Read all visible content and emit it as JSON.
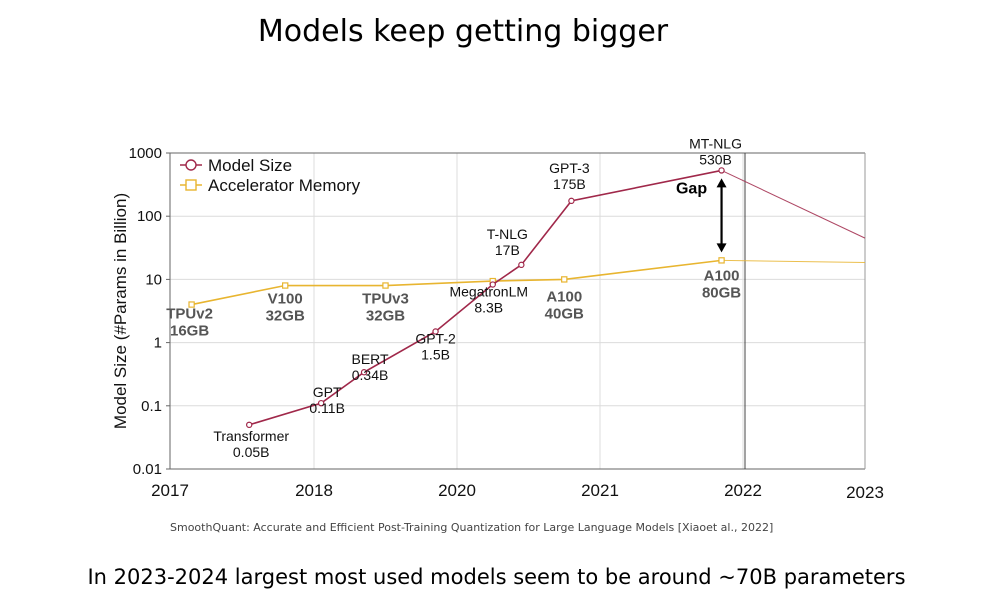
{
  "slide": {
    "title": "Models keep getting bigger",
    "citation": "SmoothQuant: Accurate and Efficient Post-Training Quantization for Large Language Models [Xiaoet al., 2022]",
    "footer": "In 2023-2024 largest most used models seem to be around ~70B parameters"
  },
  "chart_data": {
    "type": "line",
    "title": "",
    "xlabel": "",
    "ylabel": "Model Size (#Params in Billion)",
    "yscale": "log",
    "ylim": [
      0.01,
      1000
    ],
    "xlim": [
      2017,
      2023
    ],
    "x_ticks": [
      "2017",
      "2018",
      "2020",
      "2021",
      "2022",
      "2023"
    ],
    "y_ticks": [
      "0.01",
      "0.1",
      "1",
      "10",
      "100",
      "1000"
    ],
    "grid": true,
    "legend": {
      "placement": "top-left",
      "entries": [
        "Model Size",
        "Accelerator Memory"
      ]
    },
    "colors": {
      "model_size": "#a0284a",
      "accelerator_memory": "#e8b530"
    },
    "series": [
      {
        "name": "Model Size",
        "marker": "circle",
        "points": [
          {
            "x": 2017.55,
            "y": 0.05,
            "label": [
              "Transformer",
              "0.05B"
            ]
          },
          {
            "x": 2018.05,
            "y": 0.11,
            "label": [
              "GPT",
              "0.11B"
            ]
          },
          {
            "x": 2018.35,
            "y": 0.34,
            "label": [
              "BERT",
              "0.34B"
            ]
          },
          {
            "x": 2018.85,
            "y": 1.5,
            "label": [
              "GPT-2",
              "1.5B"
            ]
          },
          {
            "x": 2019.25,
            "y": 8.3,
            "label": [
              "MegatronLM",
              "8.3B"
            ]
          },
          {
            "x": 2019.45,
            "y": 17,
            "label": [
              "T-NLG",
              "17B"
            ]
          },
          {
            "x": 2019.8,
            "y": 175,
            "label": [
              "GPT-3",
              "175B"
            ]
          },
          {
            "x": 2020.85,
            "y": 530,
            "label": [
              "MT-NLG",
              "530B"
            ]
          }
        ],
        "extension": {
          "x": 2023,
          "y": 45
        }
      },
      {
        "name": "Accelerator Memory",
        "marker": "square",
        "points": [
          {
            "x": 2017.15,
            "y": 4,
            "label": [
              "TPUv2",
              "16GB"
            ]
          },
          {
            "x": 2017.8,
            "y": 8,
            "label": [
              "V100",
              "32GB"
            ]
          },
          {
            "x": 2018.5,
            "y": 8,
            "label": [
              "TPUv3",
              "32GB"
            ]
          },
          {
            "x": 2019.25,
            "y": 9.4
          },
          {
            "x": 2019.75,
            "y": 10,
            "label": [
              "A100",
              "40GB"
            ]
          },
          {
            "x": 2020.85,
            "y": 20,
            "label": [
              "A100",
              "80GB"
            ]
          }
        ],
        "extension": {
          "x": 2023,
          "y": 18.5
        }
      }
    ],
    "annotations": [
      {
        "text": "Gap",
        "from": 530,
        "to": 20
      }
    ]
  }
}
